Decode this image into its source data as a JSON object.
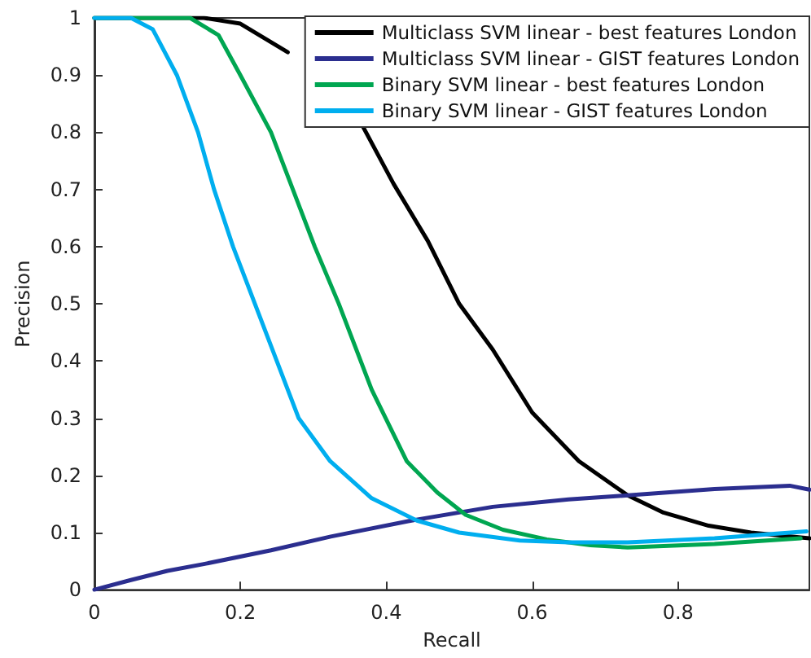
{
  "chart_data": {
    "type": "line",
    "xlabel": "Recall",
    "ylabel": "Precision",
    "xlim": [
      0,
      0.98
    ],
    "ylim": [
      0,
      1
    ],
    "xticks": [
      0,
      0.2,
      0.4,
      0.6,
      0.8
    ],
    "yticks": [
      0,
      0.1,
      0.2,
      0.3,
      0.4,
      0.5,
      0.6,
      0.7,
      0.8,
      0.9,
      1
    ],
    "grid": false,
    "legend": "top right",
    "marker": "none",
    "line_style": "solid",
    "series": [
      {
        "name": "Multiclass SVM linear - best features London",
        "color": "#000000",
        "x": [
          0,
          0.15,
          0.2,
          0.265,
          0.32,
          0.368,
          0.41,
          0.457,
          0.5,
          0.546,
          0.6,
          0.664,
          0.731,
          0.78,
          0.842,
          0.9,
          0.98
        ],
        "values": [
          1,
          1,
          0.99,
          0.94,
          null,
          0.81,
          0.71,
          0.61,
          0.5,
          0.42,
          0.31,
          0.225,
          0.165,
          0.135,
          0.112,
          0.1,
          0.09
        ]
      },
      {
        "name": "Multiclass SVM linear - GIST features London",
        "color": "#2b2e8f",
        "x": [
          0,
          0.05,
          0.1,
          0.15,
          0.242,
          0.324,
          0.43,
          0.546,
          0.65,
          0.731,
          0.85,
          0.953,
          0.98
        ],
        "values": [
          0,
          0.017,
          0.033,
          0.045,
          0.069,
          0.093,
          0.12,
          0.145,
          0.158,
          0.165,
          0.176,
          0.182,
          0.175
        ]
      },
      {
        "name": "Binary SVM linear - best features London",
        "color": "#00a651",
        "x": [
          0,
          0.1,
          0.131,
          0.17,
          0.2,
          0.242,
          0.272,
          0.302,
          0.335,
          0.38,
          0.428,
          0.47,
          0.509,
          0.56,
          0.62,
          0.68,
          0.731,
          0.85,
          0.968
        ],
        "values": [
          1,
          1,
          1,
          0.97,
          0.9,
          0.8,
          0.7,
          0.6,
          0.5,
          0.35,
          0.225,
          0.17,
          0.131,
          0.105,
          0.088,
          0.078,
          0.074,
          0.08,
          0.09
        ]
      },
      {
        "name": "Binary SVM linear - GIST features London",
        "color": "#00aeef",
        "x": [
          0,
          0.05,
          0.08,
          0.113,
          0.142,
          0.164,
          0.19,
          0.22,
          0.25,
          0.28,
          0.323,
          0.38,
          0.442,
          0.5,
          0.583,
          0.65,
          0.731,
          0.85,
          0.976
        ],
        "values": [
          1,
          1,
          0.98,
          0.9,
          0.8,
          0.7,
          0.6,
          0.5,
          0.4,
          0.3,
          0.225,
          0.16,
          0.121,
          0.1,
          0.086,
          0.083,
          0.083,
          0.09,
          0.102
        ]
      }
    ]
  }
}
